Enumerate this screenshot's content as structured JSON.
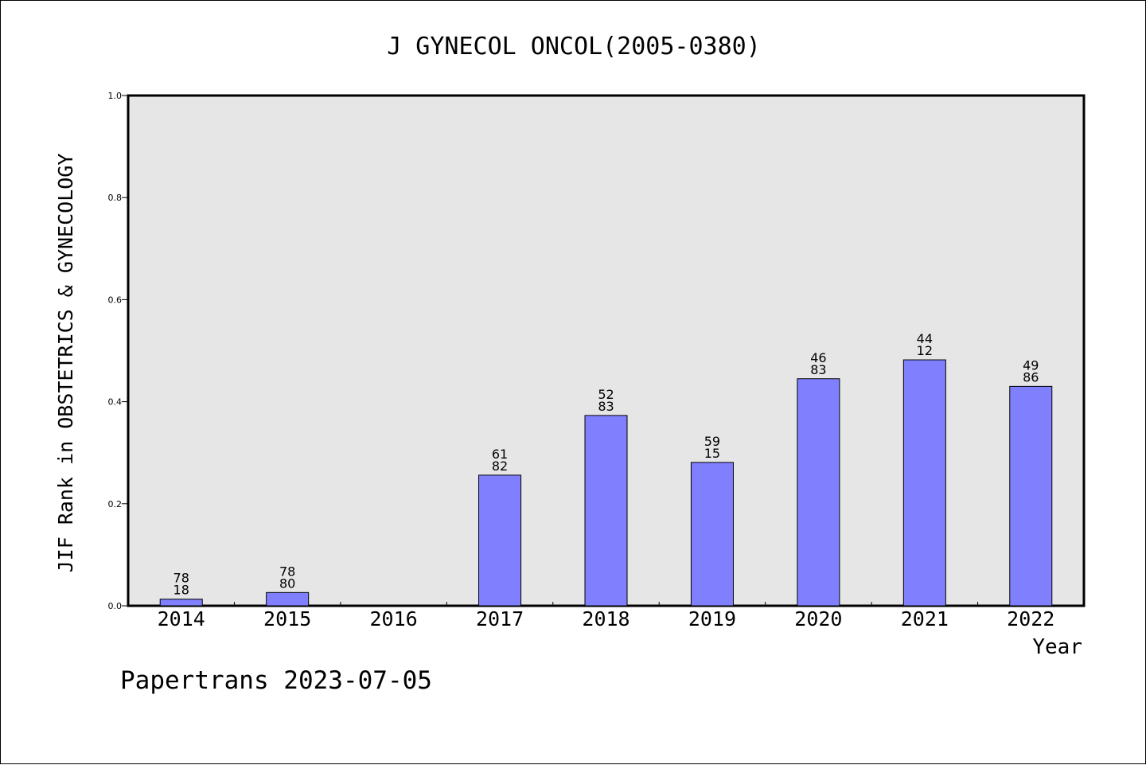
{
  "chart_data": {
    "type": "bar",
    "title": "J GYNECOL ONCOL(2005-0380)",
    "xlabel": "Year",
    "ylabel": "JIF Rank in OBSTETRICS & GYNECOLOGY",
    "categories": [
      "2014",
      "2015",
      "2016",
      "2017",
      "2018",
      "2019",
      "2020",
      "2021",
      "2022"
    ],
    "values": [
      0.013,
      0.026,
      null,
      0.256,
      0.373,
      0.281,
      0.445,
      0.482,
      0.43
    ],
    "bar_labels": [
      [
        "78",
        "18"
      ],
      [
        "78",
        "80"
      ],
      null,
      [
        "61",
        "82"
      ],
      [
        "52",
        "83"
      ],
      [
        "59",
        "15"
      ],
      [
        "46",
        "83"
      ],
      [
        "44",
        "12"
      ],
      [
        "49",
        "86"
      ]
    ],
    "ylim": [
      0,
      1.0
    ],
    "yticks": [
      "0.0",
      "0.2",
      "0.4",
      "0.6",
      "0.8",
      "1.0"
    ],
    "grid": false,
    "bar_color": "#8080ff",
    "plot_background": "#e6e6e6"
  },
  "footer": {
    "credit": "Papertrans 2023-07-05"
  }
}
